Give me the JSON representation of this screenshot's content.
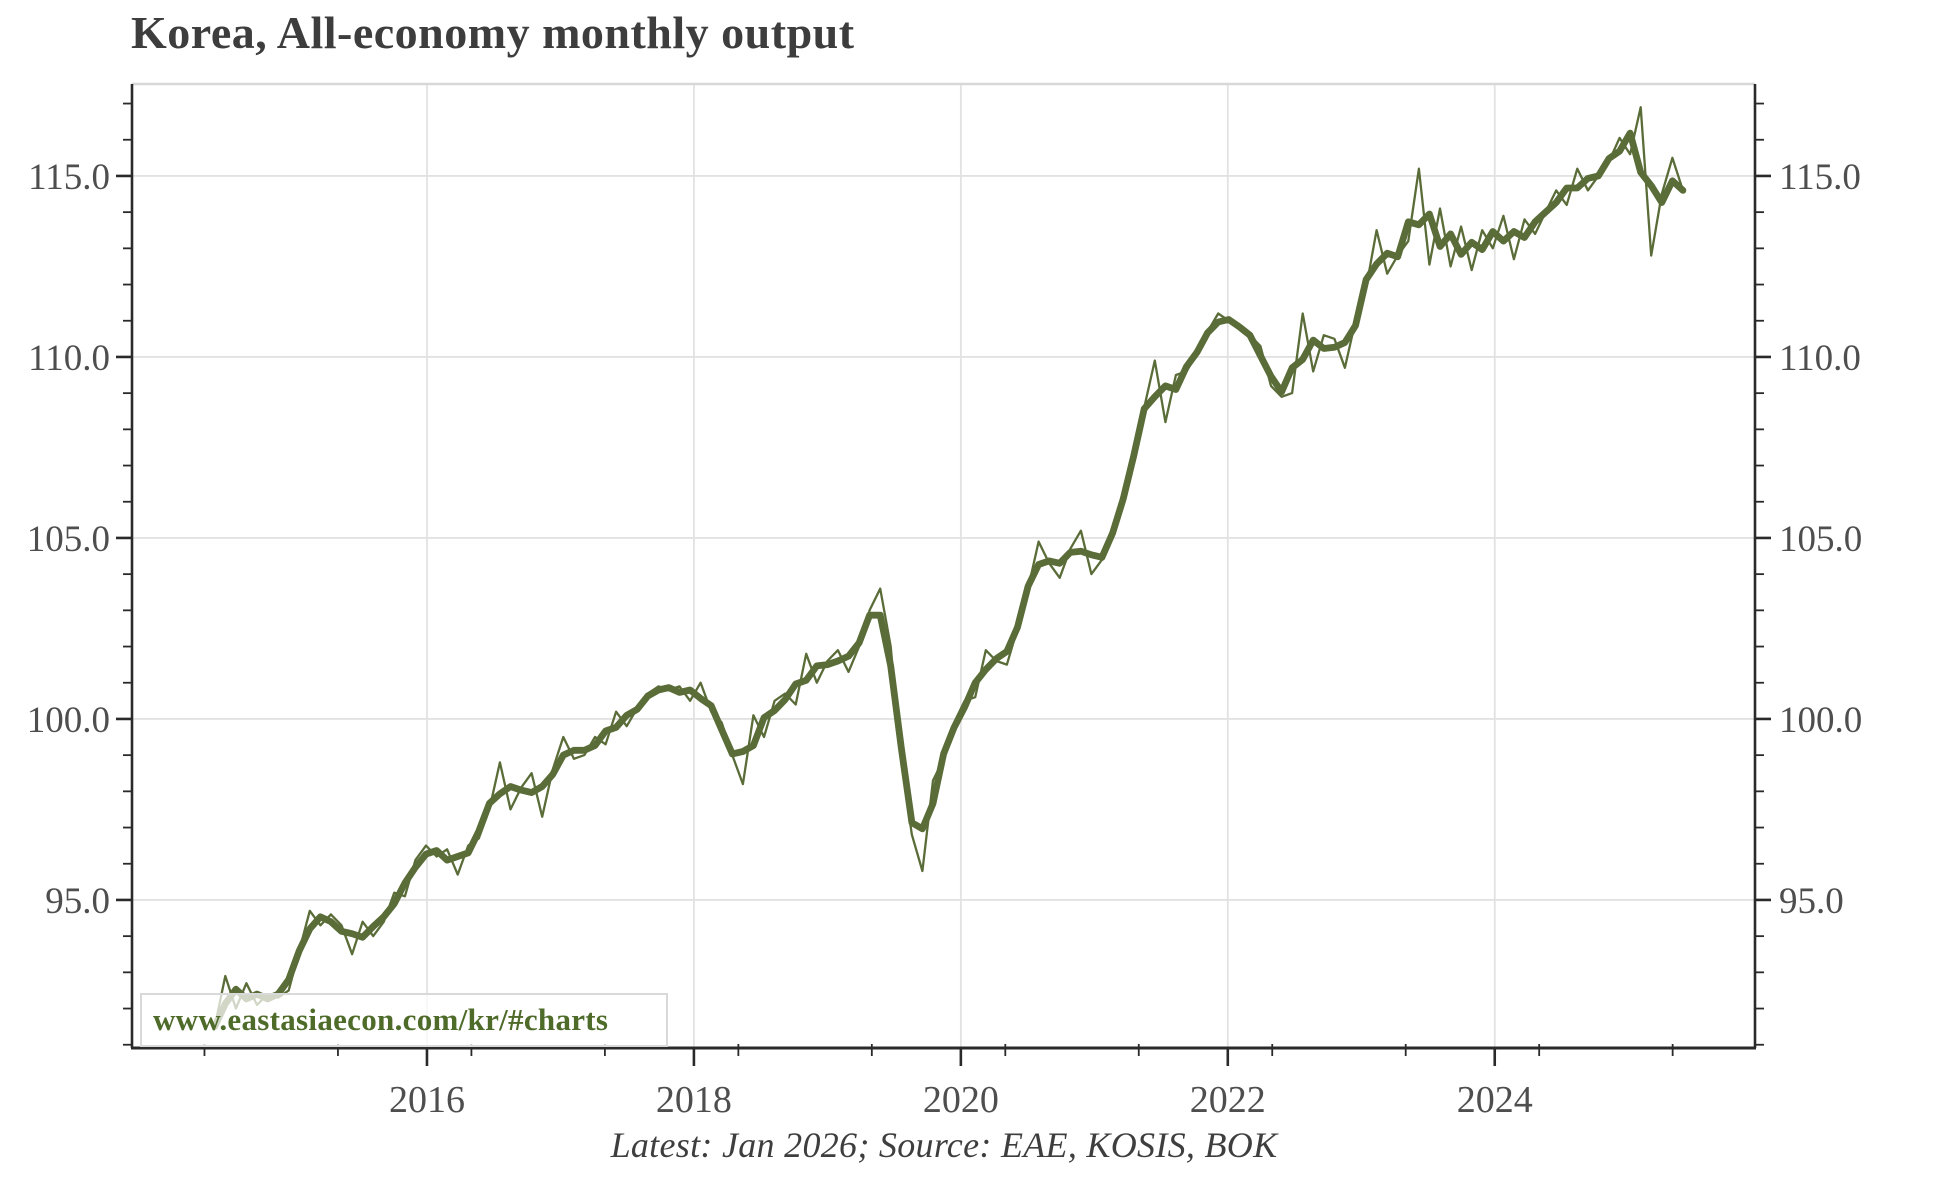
{
  "title": "Korea, All-economy monthly output",
  "caption": "Latest: Jan 2026; Source: EAE, KOSIS, BOK",
  "watermark": "www.eastasiaecon.com/kr/#charts",
  "colors": {
    "line": "#5a6c38",
    "title_text": "#3d3d3d",
    "tick_text": "#4e4e4e",
    "caption_text": "#3e3e3e",
    "watermark_text": "#4e6b2a",
    "gridline": "#e2e2e2",
    "spine": "#2a2a2a",
    "top_spine": "#d8d8d8"
  },
  "chart_data": {
    "type": "line",
    "title": "Korea, All-economy monthly output",
    "xlabel": "",
    "ylabel": "",
    "grid": "major-both",
    "legend": "none",
    "xlim": [
      2013.79,
      2025.95
    ],
    "ylim": [
      90.91,
      117.54
    ],
    "x_axis": {
      "major": {
        "values": [
          2016,
          2018,
          2020,
          2022,
          2024
        ],
        "labels": [
          "2016",
          "2018",
          "2020",
          "2022",
          "2024"
        ]
      },
      "minor_years": [
        2014,
        2015,
        2016,
        2017,
        2018,
        2019,
        2020,
        2021,
        2022,
        2023,
        2024,
        2025
      ],
      "minor_offset": 0.333
    },
    "y_axis": {
      "major": {
        "values": [
          95,
          100,
          105,
          110,
          115
        ],
        "labels": [
          "95.0",
          "100.0",
          "105.0",
          "110.0",
          "115.0"
        ]
      },
      "minor_range": [
        91,
        117
      ],
      "minor_step": 1,
      "labels_on_both_sides": true
    },
    "frequency": "monthly",
    "x_start": "2014-06",
    "x_end": "2026-01",
    "x_plot_range": [
      2014.41,
      2025.41
    ],
    "series": [
      {
        "name": "monthly output index",
        "style": "thin",
        "values": [
          91.5,
          92.9,
          92.0,
          92.7,
          92.1,
          92.4,
          92.3,
          92.5,
          93.6,
          94.7,
          94.3,
          94.6,
          94.3,
          93.5,
          94.4,
          94.0,
          94.4,
          95.2,
          95.1,
          96.1,
          96.5,
          96.2,
          96.4,
          95.7,
          96.5,
          96.7,
          97.5,
          98.8,
          97.5,
          98.1,
          98.5,
          97.3,
          98.6,
          99.5,
          98.9,
          99.0,
          99.5,
          99.3,
          100.2,
          99.8,
          100.3,
          100.7,
          100.9,
          100.8,
          100.9,
          100.5,
          101.0,
          100.2,
          99.9,
          99.0,
          98.2,
          100.1,
          99.5,
          100.5,
          100.7,
          100.4,
          101.8,
          101.0,
          101.6,
          101.9,
          101.3,
          102.0,
          103.0,
          103.6,
          102.0,
          98.8,
          96.8,
          95.8,
          98.3,
          98.9,
          99.9,
          100.5,
          100.6,
          101.9,
          101.6,
          101.5,
          102.5,
          103.6,
          104.9,
          104.3,
          103.9,
          104.7,
          105.2,
          104.0,
          104.4,
          105.0,
          106.0,
          107.2,
          108.6,
          109.9,
          108.2,
          109.5,
          109.6,
          110.1,
          110.7,
          111.2,
          111.0,
          110.9,
          110.6,
          110.3,
          109.2,
          108.9,
          109.0,
          111.2,
          109.6,
          110.6,
          110.5,
          109.7,
          111.0,
          111.9,
          113.5,
          112.3,
          112.8,
          113.2,
          115.2,
          112.55,
          114.1,
          112.5,
          113.6,
          112.4,
          113.5,
          113.0,
          113.9,
          112.7,
          113.8,
          113.4,
          114.0,
          114.6,
          114.2,
          115.2,
          114.6,
          115.0,
          115.4,
          116.05,
          115.6,
          116.9,
          112.8,
          114.5,
          115.5,
          114.6
        ]
      },
      {
        "name": "trend (smoothed)",
        "style": "thick",
        "derived_from": "monthly output index",
        "method": "centered 3-month moving average, endpoints clamped"
      }
    ]
  }
}
